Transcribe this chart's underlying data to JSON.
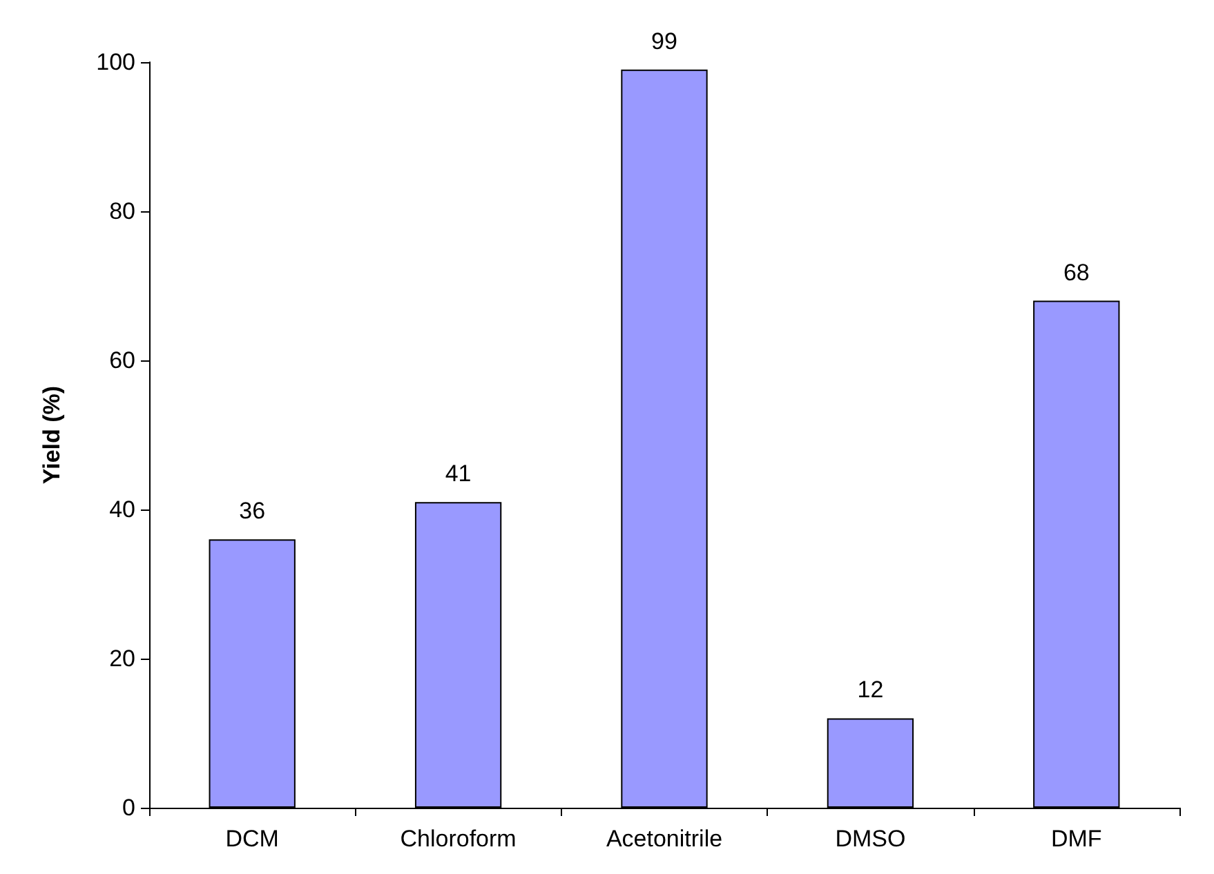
{
  "chart_data": {
    "type": "bar",
    "ylabel": "Yield (%)",
    "categories": [
      "DCM",
      "Chloroform",
      "Acetonitrile",
      "DMSO",
      "DMF"
    ],
    "values": [
      36,
      41,
      99,
      12,
      68
    ],
    "color": "#9999ff",
    "ylim": [
      0,
      100
    ],
    "yticks": [
      0,
      20,
      40,
      60,
      80,
      100
    ],
    "grid": false,
    "data_labels": true
  }
}
